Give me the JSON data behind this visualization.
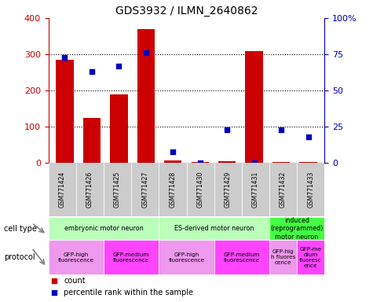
{
  "title": "GDS3932 / ILMN_2640862",
  "samples": [
    "GSM771424",
    "GSM771426",
    "GSM771425",
    "GSM771427",
    "GSM771428",
    "GSM771430",
    "GSM771429",
    "GSM771431",
    "GSM771432",
    "GSM771433"
  ],
  "counts": [
    285,
    125,
    190,
    370,
    7,
    2,
    5,
    308,
    3,
    2
  ],
  "percentiles": [
    73,
    63,
    67,
    76,
    8,
    0,
    23,
    0,
    23,
    18
  ],
  "ylim_left": [
    0,
    400
  ],
  "ylim_right": [
    0,
    100
  ],
  "yticks_left": [
    0,
    100,
    200,
    300,
    400
  ],
  "yticks_right": [
    0,
    25,
    50,
    75,
    100
  ],
  "yticklabels_right": [
    "0",
    "25",
    "50",
    "75",
    "100%"
  ],
  "yticklabels_left": [
    "0",
    "100",
    "200",
    "300",
    "400"
  ],
  "bar_color": "#cc0000",
  "dot_color": "#0000bb",
  "cell_type_groups": [
    {
      "label": "embryonic motor neuron",
      "start": 0,
      "end": 3,
      "color": "#bbffbb"
    },
    {
      "label": "ES-derived motor neuron",
      "start": 4,
      "end": 7,
      "color": "#bbffbb"
    },
    {
      "label": "induced\n(reprogrammed)\nmotor neuron",
      "start": 8,
      "end": 9,
      "color": "#44ff44"
    }
  ],
  "protocol_groups": [
    {
      "label": "GFP-high\nfluorescence",
      "start": 0,
      "end": 1,
      "color": "#ee99ee"
    },
    {
      "label": "GFP-medium\nfluorescence",
      "start": 2,
      "end": 3,
      "color": "#ff44ff"
    },
    {
      "label": "GFP-high\nfluorescence",
      "start": 4,
      "end": 5,
      "color": "#ee99ee"
    },
    {
      "label": "GFP-medium\nfluorescence",
      "start": 6,
      "end": 7,
      "color": "#ff44ff"
    },
    {
      "label": "GFP-hig\nh fluores\ncence",
      "start": 8,
      "end": 8,
      "color": "#ee99ee"
    },
    {
      "label": "GFP-me\ndium\nfluoresc\nence",
      "start": 9,
      "end": 9,
      "color": "#ff44ff"
    }
  ],
  "sample_bg_color": "#cccccc",
  "legend_items": [
    {
      "color": "#cc0000",
      "label": "count"
    },
    {
      "color": "#0000bb",
      "label": "percentile rank within the sample"
    }
  ]
}
